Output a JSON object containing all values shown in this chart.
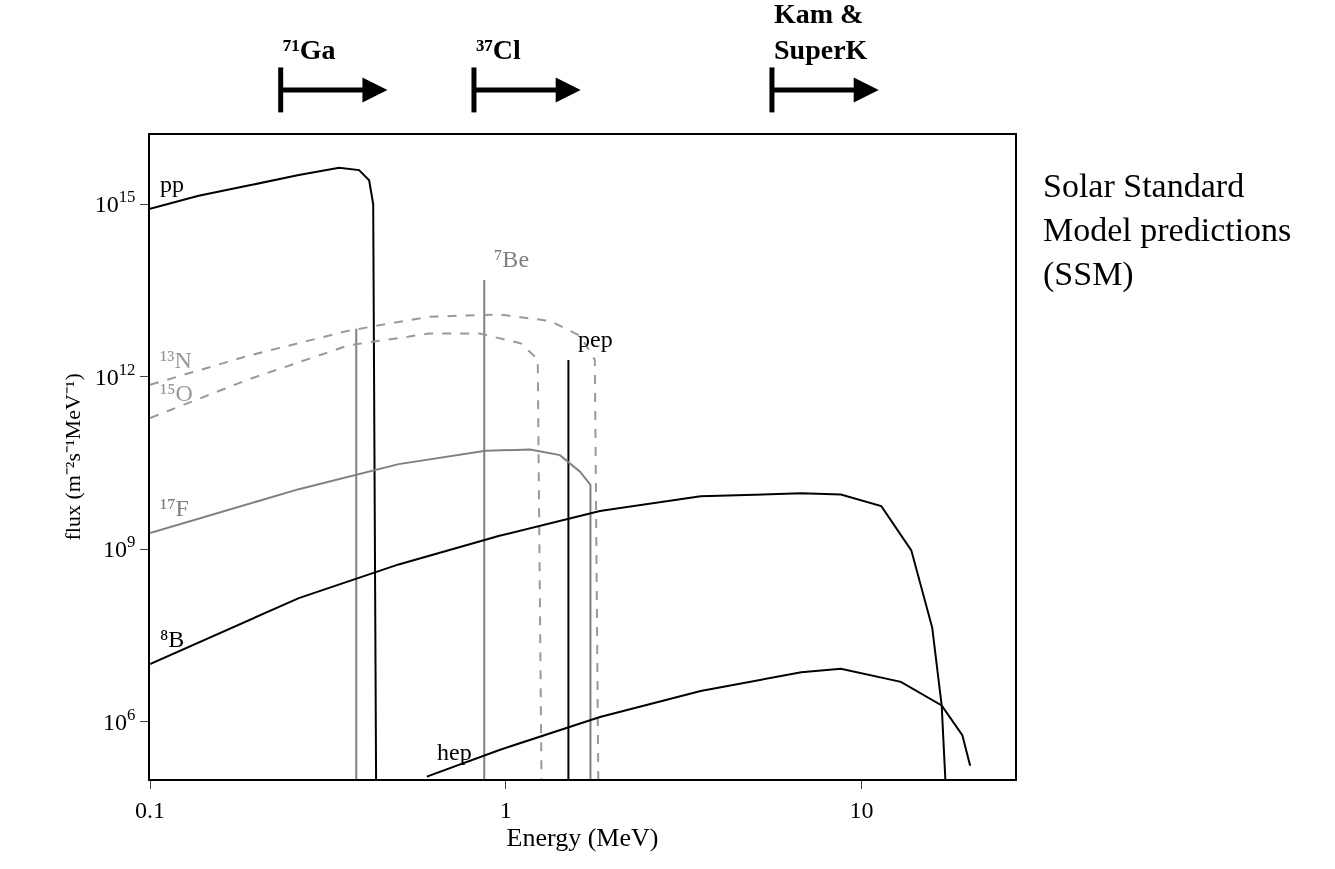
{
  "chart_data": {
    "type": "line",
    "xlabel": "Energy (MeV)",
    "ylabel": "flux (m⁻²s⁻¹MeV⁻¹)",
    "log": "xy",
    "legend": false,
    "xlim": [
      0.1,
      27
    ],
    "ylim": [
      100000.0,
      1.6e+16
    ],
    "xticks": [
      0.1,
      1,
      10
    ],
    "yticks": [
      {
        "value": 1000000.0,
        "label": "10$^{6}$"
      },
      {
        "value": 1000000000.0,
        "label": "10$^{9}$"
      },
      {
        "value": 1000000000000.0,
        "label": "10$^{12}$"
      },
      {
        "value": 1000000000000000.0,
        "label": "10$^{15}$"
      }
    ],
    "ref_lines": [
      {
        "axis": "x",
        "value": 0.233,
        "label": "⁷¹Ga"
      },
      {
        "axis": "x",
        "value": 0.814,
        "label": "³⁷Cl"
      },
      {
        "axis": "x",
        "value": 5.6,
        "label": "Kam &\nSuperK"
      }
    ],
    "series": [
      {
        "name": "pp",
        "color": "#000000",
        "x": [
          0.1,
          0.137,
          0.189,
          0.262,
          0.34,
          0.387,
          0.413,
          0.424,
          0.432
        ],
        "values": [
          830000000000000.0,
          1400000000000000.0,
          2100000000000000.0,
          3200000000000000.0,
          4300000000000000.0,
          3900000000000000.0,
          2600000000000000.0,
          1000000000000000.0,
          100000.0
        ]
      },
      {
        "color": "#808080",
        "x": [
          0.38,
          0.38
        ],
        "values": [
          100000.0,
          6800000000000.0
        ]
      },
      {
        "name": "⁷Be",
        "color": "#808080",
        "x": [
          0.87,
          0.87
        ],
        "values": [
          100000.0,
          48000000000000.0
        ]
      },
      {
        "name": "pep",
        "color": "#000000",
        "x": [
          1.5,
          1.5
        ],
        "values": [
          100000.0,
          1950000000000.0
        ]
      },
      {
        "name": "¹³N",
        "color": "#999999",
        "line_style": "dashed",
        "x": [
          0.1,
          0.189,
          0.362,
          0.61,
          0.96,
          1.33,
          1.62,
          1.78,
          1.82
        ],
        "values": [
          720000000000.0,
          2300000000000.0,
          6300000000000.0,
          11000000000000.0,
          12000000000000.0,
          9300000000000.0,
          5100000000000.0,
          1950000000000.0,
          100000.0
        ]
      },
      {
        "name": "¹⁵O",
        "color": "#999999",
        "line_style": "dashed",
        "x": [
          0.1,
          0.189,
          0.362,
          0.61,
          0.845,
          1.1,
          1.23,
          1.26
        ],
        "values": [
          190000000000.0,
          890000000000.0,
          3500000000000.0,
          5600000000000.0,
          5600000000000.0,
          3800000000000.0,
          2000000000000.0,
          100000.0
        ]
      },
      {
        "name": "¹⁷F",
        "color": "#808080",
        "x": [
          0.1,
          0.262,
          0.5,
          0.878,
          1.17,
          1.42,
          1.62,
          1.73,
          1.73
        ],
        "values": [
          1900000000.0,
          11000000000.0,
          30000000000.0,
          51000000000.0,
          54000000000.0,
          43000000000.0,
          22000000000.0,
          13000000000.0,
          100000.0
        ]
      },
      {
        "name": "⁸B",
        "color": "#000000",
        "x": [
          0.1,
          0.262,
          0.5,
          0.96,
          1.84,
          3.53,
          6.77,
          8.75,
          11.36,
          13.8,
          15.8,
          16.8,
          17.2
        ],
        "values": [
          10000000.0,
          140000000.0,
          540000000.0,
          1700000000.0,
          4600000000.0,
          8300000000.0,
          9300000000.0,
          8900000000.0,
          5600000000.0,
          950000000.0,
          43000000.0,
          1900000.0,
          100000.0
        ]
      },
      {
        "name": "hep",
        "color": "#000000",
        "x": [
          0.6,
          0.96,
          1.84,
          3.53,
          6.77,
          8.75,
          12.9,
          16.8,
          19.2,
          20.2
        ],
        "values": [
          110000.0,
          320000.0,
          1200000.0,
          3400000.0,
          7200000.0,
          8300000.0,
          4900000.0,
          1900000.0,
          580000.0,
          170000.0
        ]
      }
    ],
    "annotations": [
      "Solar Standard\nModel predictions\n(SSM)"
    ]
  }
}
